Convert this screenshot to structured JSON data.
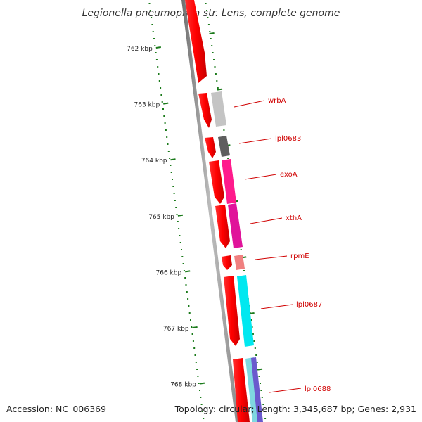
{
  "title": "Legionella pneumophila str. Lens, complete genome",
  "footer": {
    "accession": "Accession: NC_006369",
    "topology": "Topology: circular; Length: 3,345,687 bp; Genes: 2,931"
  },
  "ticks": [
    {
      "label": "762 kbp"
    },
    {
      "label": "763 kbp"
    },
    {
      "label": "764 kbp"
    },
    {
      "label": "765 kbp"
    },
    {
      "label": "766 kbp"
    },
    {
      "label": "767 kbp"
    },
    {
      "label": "768 kbp"
    }
  ],
  "genes": [
    {
      "label": "wrbA",
      "color": "#c0c0c0"
    },
    {
      "label": "lpl0683",
      "color": "#606060"
    },
    {
      "label": "exoA",
      "color": "#ff1493"
    },
    {
      "label": "xthA",
      "color": "#e0149a"
    },
    {
      "label": "rpmE",
      "color": "#f08080"
    },
    {
      "label": "lpl0687",
      "color": "#00e5ee"
    },
    {
      "label": "lpl0688",
      "color": "#6a5acd"
    }
  ],
  "colors": {
    "cds": "#ff0000",
    "backbone": "#808080",
    "gc_marks": "#1a7a1a",
    "label_line": "#d00000"
  }
}
